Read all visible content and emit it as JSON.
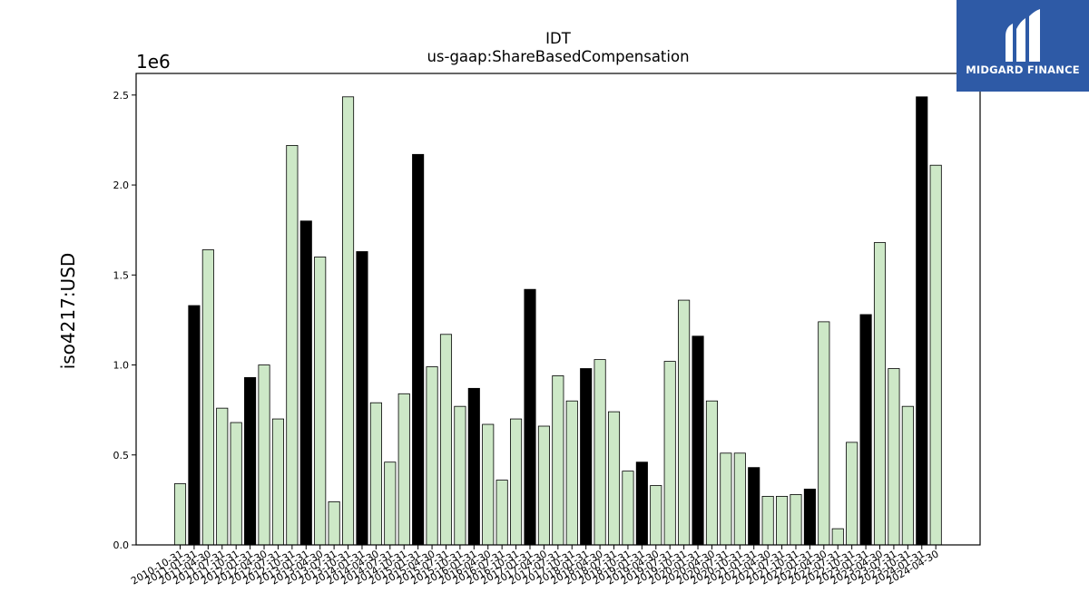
{
  "chart_data": {
    "type": "bar",
    "title": "IDT",
    "subtitle": "us-gaap:ShareBasedCompensation",
    "xlabel": "",
    "ylabel": "iso4217:USD",
    "y_offset_label": "1e6",
    "ylim": [
      0,
      2620000
    ],
    "yticks": [
      0,
      500000,
      1000000,
      1500000,
      2000000,
      2500000
    ],
    "ytick_labels": [
      "0.0",
      "0.5",
      "1.0",
      "1.5",
      "2.0",
      "2.5"
    ],
    "categories": [
      "2010-10-31",
      "2011-01-31",
      "2011-04-30",
      "2011-07-31",
      "2011-10-31",
      "2012-01-31",
      "2012-04-30",
      "2012-07-31",
      "2012-10-31",
      "2013-01-31",
      "2013-04-30",
      "2013-07-31",
      "2013-10-31",
      "2014-01-31",
      "2014-04-30",
      "2014-07-31",
      "2014-10-31",
      "2015-01-31",
      "2015-04-30",
      "2015-07-31",
      "2015-10-31",
      "2016-01-31",
      "2016-04-30",
      "2016-07-31",
      "2016-10-31",
      "2017-01-31",
      "2017-04-30",
      "2017-07-31",
      "2017-10-31",
      "2018-01-31",
      "2018-04-30",
      "2018-07-31",
      "2018-10-31",
      "2019-01-31",
      "2019-04-30",
      "2019-07-31",
      "2019-10-31",
      "2020-01-31",
      "2020-04-30",
      "2020-07-31",
      "2020-10-31",
      "2021-01-31",
      "2021-04-30",
      "2021-07-31",
      "2021-10-31",
      "2022-01-31",
      "2022-04-30",
      "2022-07-31",
      "2022-10-31",
      "2023-01-31",
      "2023-04-30",
      "2023-07-31",
      "2023-10-31",
      "2024-01-31",
      "2024-04-30"
    ],
    "values": [
      340000,
      1330000,
      1640000,
      760000,
      680000,
      930000,
      1000000,
      700000,
      2220000,
      1800000,
      1600000,
      240000,
      2490000,
      1630000,
      790000,
      460000,
      840000,
      2170000,
      990000,
      1170000,
      770000,
      870000,
      670000,
      360000,
      700000,
      1420000,
      660000,
      940000,
      800000,
      980000,
      1030000,
      740000,
      410000,
      460000,
      330000,
      1020000,
      1360000,
      1160000,
      800000,
      510000,
      510000,
      430000,
      270000,
      270000,
      280000,
      310000,
      1240000,
      90000,
      570000,
      1280000,
      1680000,
      980000,
      770000,
      2490000,
      2110000
    ],
    "highlight": [
      false,
      true,
      false,
      false,
      false,
      true,
      false,
      false,
      false,
      true,
      false,
      false,
      false,
      true,
      false,
      false,
      false,
      true,
      false,
      false,
      false,
      true,
      false,
      false,
      false,
      true,
      false,
      false,
      false,
      true,
      false,
      false,
      false,
      true,
      false,
      false,
      false,
      true,
      false,
      false,
      false,
      true,
      false,
      false,
      false,
      true,
      false,
      false,
      false,
      true,
      false,
      false,
      false,
      true,
      false
    ],
    "colors": {
      "bar": "#cde8c7",
      "highlight_bar": "#000000",
      "edge": "#000000"
    },
    "grid": false,
    "legend": "none"
  },
  "logo": {
    "text": "MIDGARD FINANCE",
    "background": "#2e5aa6"
  }
}
